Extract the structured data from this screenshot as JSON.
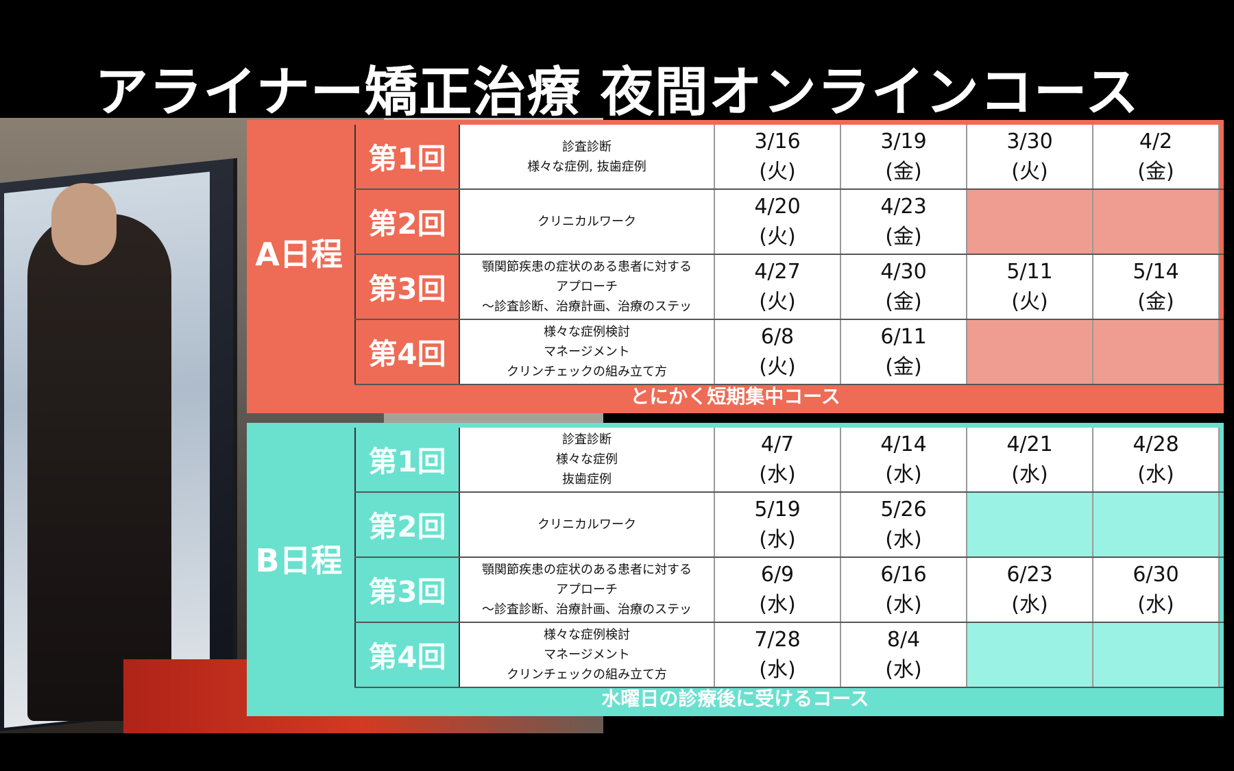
{
  "title": "アライナー矯正治療 夜間オンラインコース",
  "schedules": [
    {
      "label": "A日程",
      "footer": "とにかく短期集中コース",
      "rows": [
        {
          "round": "第1回",
          "topic": [
            "診査診断",
            "様々な症例, 抜歯症例"
          ],
          "dates": [
            [
              "3/16",
              "(火)"
            ],
            [
              "3/19",
              "(金)"
            ],
            [
              "3/30",
              "(火)"
            ],
            [
              "4/2",
              "(金)"
            ]
          ]
        },
        {
          "round": "第2回",
          "topic": [
            "クリニカルワーク"
          ],
          "dates": [
            [
              "4/20",
              "(火)"
            ],
            [
              "4/23",
              "(金)"
            ],
            [
              "",
              ""
            ],
            [
              "",
              ""
            ]
          ]
        },
        {
          "round": "第3回",
          "topic": [
            "顎関節疾患の症状のある患者に対する",
            "アプローチ",
            "〜診査診断、治療計画、治療のステッ"
          ],
          "dates": [
            [
              "4/27",
              "(火)"
            ],
            [
              "4/30",
              "(金)"
            ],
            [
              "5/11",
              "(火)"
            ],
            [
              "5/14",
              "(金)"
            ]
          ]
        },
        {
          "round": "第4回",
          "topic": [
            "様々な症例検討",
            "マネージメント",
            "クリンチェックの組み立て方"
          ],
          "dates": [
            [
              "6/8",
              "(火)"
            ],
            [
              "6/11",
              "(金)"
            ],
            [
              "",
              ""
            ],
            [
              "",
              ""
            ]
          ]
        }
      ]
    },
    {
      "label": "B日程",
      "footer": "水曜日の診療後に受けるコース",
      "rows": [
        {
          "round": "第1回",
          "topic": [
            "診査診断",
            "様々な症例",
            "抜歯症例"
          ],
          "dates": [
            [
              "4/7",
              "(水)"
            ],
            [
              "4/14",
              "(水)"
            ],
            [
              "4/21",
              "(水)"
            ],
            [
              "4/28",
              "(水)"
            ]
          ]
        },
        {
          "round": "第2回",
          "topic": [
            "クリニカルワーク"
          ],
          "dates": [
            [
              "5/19",
              "(水)"
            ],
            [
              "5/26",
              "(水)"
            ],
            [
              "",
              ""
            ],
            [
              "",
              ""
            ]
          ]
        },
        {
          "round": "第3回",
          "topic": [
            "顎関節疾患の症状のある患者に対する",
            "アプローチ",
            "〜診査診断、治療計画、治療のステッ"
          ],
          "dates": [
            [
              "6/9",
              "(水)"
            ],
            [
              "6/16",
              "(水)"
            ],
            [
              "6/23",
              "(水)"
            ],
            [
              "6/30",
              "(水)"
            ]
          ]
        },
        {
          "round": "第4回",
          "topic": [
            "様々な症例検討",
            "マネージメント",
            "クリンチェックの組み立て方"
          ],
          "dates": [
            [
              "7/28",
              "(水)"
            ],
            [
              "8/4",
              "(水)"
            ],
            [
              "",
              ""
            ],
            [
              "",
              ""
            ]
          ]
        }
      ]
    }
  ],
  "colors": {
    "a_panel": "#ee6b55",
    "a_empty": "#ef9d91",
    "b_panel": "#6ae0cf",
    "b_empty": "#99f2e4"
  }
}
